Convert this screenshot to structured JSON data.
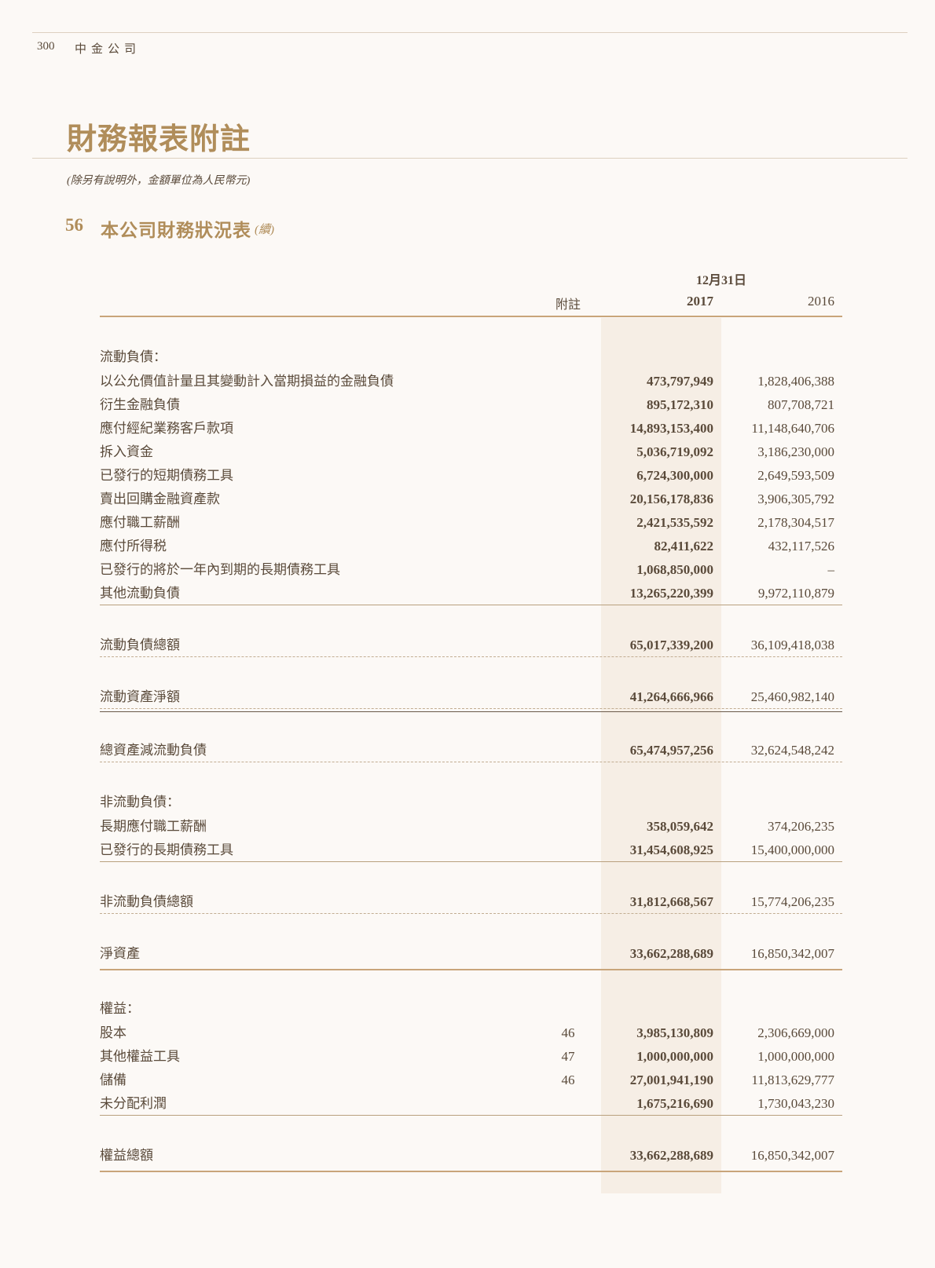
{
  "header": {
    "page_number": "300",
    "company": "中金公司"
  },
  "title": "財務報表附註",
  "subtitle": "(除另有說明外，金額單位為人民幣元)",
  "section": {
    "number": "56",
    "title": "本公司財務狀況表",
    "continued": "(續)"
  },
  "table": {
    "date_header": "12月31日",
    "note_header": "附註",
    "year_current": "2017",
    "year_prior": "2016",
    "rows": [
      {
        "label": "流動負債：",
        "note": "",
        "v2017": "",
        "v2016": ""
      },
      {
        "label": "以公允價值計量且其變動計入當期損益的金融負債",
        "note": "",
        "v2017": "473,797,949",
        "v2016": "1,828,406,388"
      },
      {
        "label": "衍生金融負債",
        "note": "",
        "v2017": "895,172,310",
        "v2016": "807,708,721"
      },
      {
        "label": "應付經紀業務客戶款項",
        "note": "",
        "v2017": "14,893,153,400",
        "v2016": "11,148,640,706"
      },
      {
        "label": "拆入資金",
        "note": "",
        "v2017": "5,036,719,092",
        "v2016": "3,186,230,000"
      },
      {
        "label": "已發行的短期債務工具",
        "note": "",
        "v2017": "6,724,300,000",
        "v2016": "2,649,593,509"
      },
      {
        "label": "賣出回購金融資產款",
        "note": "",
        "v2017": "20,156,178,836",
        "v2016": "3,906,305,792"
      },
      {
        "label": "應付職工薪酬",
        "note": "",
        "v2017": "2,421,535,592",
        "v2016": "2,178,304,517"
      },
      {
        "label": "應付所得税",
        "note": "",
        "v2017": "82,411,622",
        "v2016": "432,117,526"
      },
      {
        "label": "已發行的將於一年內到期的長期債務工具",
        "note": "",
        "v2017": "1,068,850,000",
        "v2016": "–"
      },
      {
        "label": "其他流動負債",
        "note": "",
        "v2017": "13,265,220,399",
        "v2016": "9,972,110,879"
      },
      {
        "label": "流動負債總額",
        "note": "",
        "v2017": "65,017,339,200",
        "v2016": "36,109,418,038"
      },
      {
        "label": "流動資產淨額",
        "note": "",
        "v2017": "41,264,666,966",
        "v2016": "25,460,982,140"
      },
      {
        "label": "總資產減流動負債",
        "note": "",
        "v2017": "65,474,957,256",
        "v2016": "32,624,548,242"
      },
      {
        "label": "非流動負債：",
        "note": "",
        "v2017": "",
        "v2016": ""
      },
      {
        "label": "長期應付職工薪酬",
        "note": "",
        "v2017": "358,059,642",
        "v2016": "374,206,235"
      },
      {
        "label": "已發行的長期債務工具",
        "note": "",
        "v2017": "31,454,608,925",
        "v2016": "15,400,000,000"
      },
      {
        "label": "非流動負債總額",
        "note": "",
        "v2017": "31,812,668,567",
        "v2016": "15,774,206,235"
      },
      {
        "label": "淨資產",
        "note": "",
        "v2017": "33,662,288,689",
        "v2016": "16,850,342,007"
      },
      {
        "label": "權益：",
        "note": "",
        "v2017": "",
        "v2016": ""
      },
      {
        "label": "股本",
        "note": "46",
        "v2017": "3,985,130,809",
        "v2016": "2,306,669,000"
      },
      {
        "label": "其他權益工具",
        "note": "47",
        "v2017": "1,000,000,000",
        "v2016": "1,000,000,000"
      },
      {
        "label": "儲備",
        "note": "46",
        "v2017": "27,001,941,190",
        "v2016": "11,813,629,777"
      },
      {
        "label": "未分配利潤",
        "note": "",
        "v2017": "1,675,216,690",
        "v2016": "1,730,043,230"
      },
      {
        "label": "權益總額",
        "note": "",
        "v2017": "33,662,288,689",
        "v2016": "16,850,342,007"
      }
    ]
  },
  "colors": {
    "accent": "#b08d5a",
    "text": "#5a4a3a",
    "background": "#fcf9f6",
    "highlight_column": "#f6eee5"
  }
}
